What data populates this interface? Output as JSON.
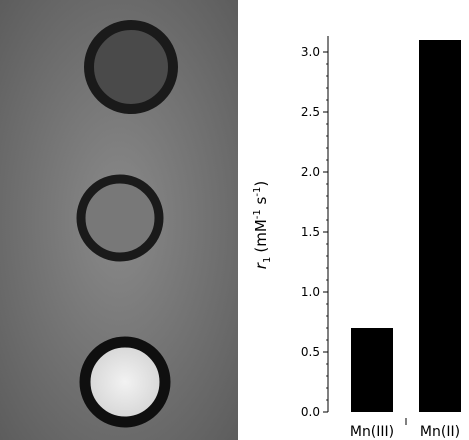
{
  "phantom": {
    "description_icon": "mri-phantom-image",
    "colors": {
      "background": "#7a7a7a",
      "ring": "#1a1a1a",
      "fill_top": "#4a4a4a",
      "fill_middle": "#787878",
      "fill_bottom": "#e8e8e8"
    }
  },
  "chart_data": {
    "type": "bar",
    "categories": [
      "Mn(III)",
      "Mn(II)"
    ],
    "values": [
      0.7,
      3.1
    ],
    "ylabel_main": "r",
    "ylabel_sub": "1",
    "ylabel_units": "(mM",
    "ylabel_sup1": "-1",
    "ylabel_s": " s",
    "ylabel_sup2": "-1",
    "ylabel_close": ")",
    "ylim": [
      0,
      3.1
    ],
    "yticks": [
      0.0,
      0.5,
      1.0,
      1.5,
      2.0,
      2.5,
      3.0
    ],
    "ytick_labels": [
      "0.0",
      "0.5",
      "1.0",
      "1.5",
      "2.0",
      "2.5",
      "3.0"
    ],
    "bar_color": "#000000",
    "grid": false,
    "legend": "none"
  }
}
